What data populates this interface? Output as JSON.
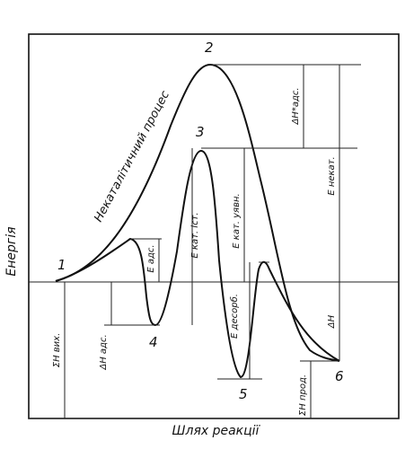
{
  "axis": {
    "y_label": "Енергія",
    "x_label": "Шлях реакції"
  },
  "points": {
    "p1": "1",
    "p2": "2",
    "p3": "3",
    "p4": "4",
    "p5": "5",
    "p6": "6"
  },
  "curves": {
    "noncatalytic_label": "Некаталітичний процес"
  },
  "labels": {
    "dh_ads_star": "ΔH*адс.",
    "e_noncat": "E некат.",
    "e_ads": "E адс.",
    "e_cat_ist": "E кат. іст.",
    "e_cat_uyav": "E кат. уявн.",
    "e_desorb": "E десорб.",
    "dh": "ΔH",
    "sum_h_vykh": "ΣH вих.",
    "dh_ads": "ΔH адс.",
    "sum_h_prod": "ΣH прод."
  }
}
